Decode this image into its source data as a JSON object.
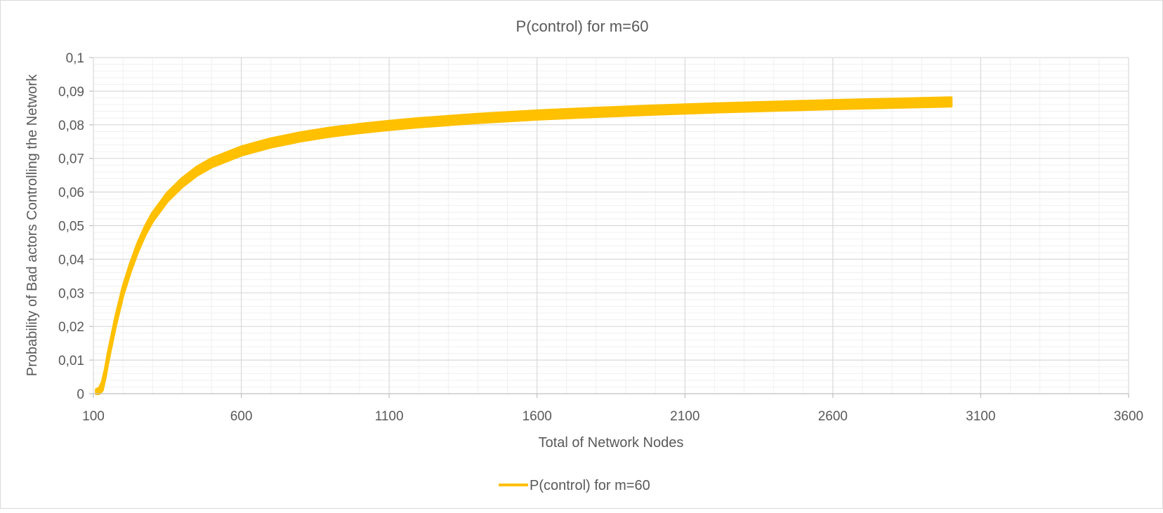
{
  "chart_data": {
    "type": "line",
    "title": "P(control) for m=60",
    "xlabel": "Total of Network Nodes",
    "ylabel": "Probability of Bad actors Controlling the Network",
    "xlim": [
      100,
      3600
    ],
    "ylim": [
      0,
      0.1
    ],
    "x_tick_labels": [
      "100",
      "600",
      "1100",
      "1600",
      "2100",
      "2600",
      "3100",
      "3600"
    ],
    "y_tick_labels": [
      "0",
      "0,01",
      "0,02",
      "0,03",
      "0,04",
      "0,05",
      "0,06",
      "0,07",
      "0,08",
      "0,09",
      "0,1"
    ],
    "grid": true,
    "legend": "bottom",
    "series": [
      {
        "name": "P(control) for m=60",
        "color": "#FFC000",
        "band_width": 0.0025,
        "x": [
          110,
          120,
          130,
          140,
          150,
          175,
          200,
          225,
          250,
          275,
          300,
          350,
          400,
          450,
          500,
          600,
          700,
          800,
          900,
          1000,
          1100,
          1200,
          1400,
          1600,
          1800,
          2000,
          2200,
          2400,
          2600,
          2800,
          3000
        ],
        "y": [
          0,
          0.0004,
          0.0022,
          0.006,
          0.011,
          0.0215,
          0.0305,
          0.0375,
          0.0435,
          0.0485,
          0.0525,
          0.0585,
          0.0628,
          0.0662,
          0.0687,
          0.0722,
          0.0746,
          0.0764,
          0.0778,
          0.0789,
          0.0798,
          0.0806,
          0.0819,
          0.0829,
          0.0837,
          0.0844,
          0.085,
          0.0855,
          0.086,
          0.0864,
          0.0868
        ]
      }
    ]
  }
}
